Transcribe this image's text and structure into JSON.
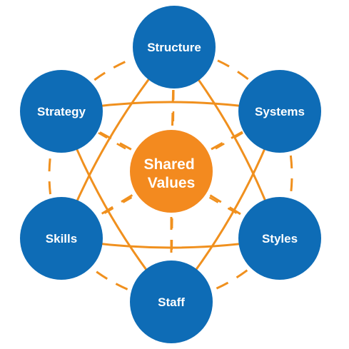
{
  "colors": {
    "outer_node": "#0e6cb6",
    "center_node": "#f38a1f",
    "connector": "#f0901e",
    "background": "#ffffff"
  },
  "center": {
    "lines": [
      "Shared",
      "Values"
    ]
  },
  "nodes": [
    {
      "key": "structure",
      "label": "Structure"
    },
    {
      "key": "systems",
      "label": "Systems"
    },
    {
      "key": "styles",
      "label": "Styles"
    },
    {
      "key": "staff",
      "label": "Staff"
    },
    {
      "key": "skills",
      "label": "Skills"
    },
    {
      "key": "strategy",
      "label": "Strategy"
    }
  ]
}
